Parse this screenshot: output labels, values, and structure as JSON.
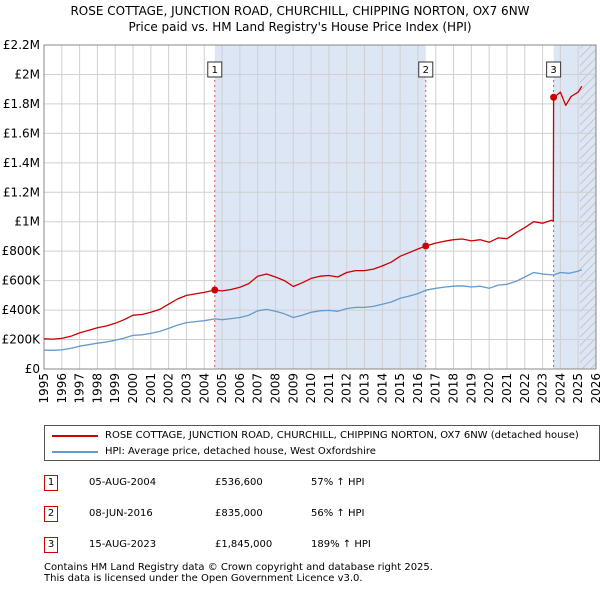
{
  "header": {
    "title_line1": "ROSE COTTAGE, JUNCTION ROAD, CHURCHILL, CHIPPING NORTON, OX7 6NW",
    "title_line2": "Price paid vs. HM Land Registry's House Price Index (HPI)"
  },
  "chart_data": {
    "type": "line",
    "x_range": [
      1995,
      2026
    ],
    "ylim": [
      0,
      2200000
    ],
    "y_ticks": [
      0,
      200000,
      400000,
      600000,
      800000,
      1000000,
      1200000,
      1400000,
      1600000,
      1800000,
      2000000,
      2200000
    ],
    "y_tick_labels": [
      "£0",
      "£200K",
      "£400K",
      "£600K",
      "£800K",
      "£1M",
      "£1.2M",
      "£1.4M",
      "£1.6M",
      "£1.8M",
      "£2M",
      "£2.2M"
    ],
    "x_ticks": [
      1995,
      1996,
      1997,
      1998,
      1999,
      2000,
      2001,
      2002,
      2003,
      2004,
      2005,
      2006,
      2007,
      2008,
      2009,
      2010,
      2011,
      2012,
      2013,
      2014,
      2015,
      2016,
      2017,
      2018,
      2019,
      2020,
      2021,
      2022,
      2023,
      2024,
      2025,
      2026
    ],
    "x_tick_labels": [
      "1995",
      "1996",
      "1997",
      "1998",
      "1999",
      "2000",
      "2001",
      "2002",
      "2003",
      "2004",
      "2005",
      "2006",
      "2007",
      "2008",
      "2009",
      "2010",
      "2011",
      "2012",
      "2013",
      "2014",
      "2015",
      "2016",
      "2017",
      "2018",
      "2019",
      "2020",
      "2021",
      "2022",
      "2023",
      "2024",
      "2025",
      "2026"
    ],
    "shaded_periods": [
      {
        "start": 2004.59,
        "end": 2016.44
      },
      {
        "start": 2023.62,
        "end": 2026
      }
    ],
    "hatched_period": {
      "start": 2025.1,
      "end": 2026
    },
    "grid": true,
    "series": [
      {
        "name": "ROSE COTTAGE, JUNCTION ROAD, CHURCHILL, CHIPPING NORTON, OX7 6NW (detached house)",
        "color": "#cc0000",
        "x": [
          1995.0,
          1995.5,
          1996.0,
          1996.5,
          1997.0,
          1997.5,
          1998.0,
          1998.5,
          1999.0,
          1999.5,
          2000.0,
          2000.5,
          2001.0,
          2001.5,
          2002.0,
          2002.5,
          2003.0,
          2003.5,
          2004.0,
          2004.59,
          2005.0,
          2005.5,
          2006.0,
          2006.5,
          2007.0,
          2007.5,
          2008.0,
          2008.5,
          2009.0,
          2009.5,
          2010.0,
          2010.5,
          2011.0,
          2011.5,
          2012.0,
          2012.5,
          2013.0,
          2013.5,
          2014.0,
          2014.5,
          2015.0,
          2015.5,
          2016.0,
          2016.44,
          2017.0,
          2017.5,
          2018.0,
          2018.5,
          2019.0,
          2019.5,
          2020.0,
          2020.5,
          2021.0,
          2021.5,
          2022.0,
          2022.5,
          2023.0,
          2023.5,
          2023.6,
          2023.62,
          2023.8,
          2024.0,
          2024.3,
          2024.6,
          2025.0,
          2025.2
        ],
        "values": [
          205000,
          203000,
          208000,
          222000,
          245000,
          262000,
          280000,
          292000,
          310000,
          335000,
          365000,
          370000,
          385000,
          405000,
          440000,
          475000,
          500000,
          510000,
          520000,
          536600,
          530000,
          540000,
          555000,
          580000,
          630000,
          645000,
          625000,
          600000,
          560000,
          585000,
          615000,
          630000,
          635000,
          625000,
          655000,
          668000,
          668000,
          678000,
          700000,
          725000,
          765000,
          790000,
          815000,
          835000,
          855000,
          868000,
          878000,
          883000,
          870000,
          878000,
          860000,
          890000,
          885000,
          925000,
          960000,
          1000000,
          990000,
          1010000,
          1005000,
          1845000,
          1860000,
          1880000,
          1790000,
          1850000,
          1880000,
          1920000
        ]
      },
      {
        "name": "HPI: Average price, detached house, West Oxfordshire",
        "color": "#6699cc",
        "x": [
          1995.0,
          1995.5,
          1996.0,
          1996.5,
          1997.0,
          1997.5,
          1998.0,
          1998.5,
          1999.0,
          1999.5,
          2000.0,
          2000.5,
          2001.0,
          2001.5,
          2002.0,
          2002.5,
          2003.0,
          2003.5,
          2004.0,
          2004.59,
          2005.0,
          2005.5,
          2006.0,
          2006.5,
          2007.0,
          2007.5,
          2008.0,
          2008.5,
          2009.0,
          2009.5,
          2010.0,
          2010.5,
          2011.0,
          2011.5,
          2012.0,
          2012.5,
          2013.0,
          2013.5,
          2014.0,
          2014.5,
          2015.0,
          2015.5,
          2016.0,
          2016.44,
          2017.0,
          2017.5,
          2018.0,
          2018.5,
          2019.0,
          2019.5,
          2020.0,
          2020.5,
          2021.0,
          2021.5,
          2022.0,
          2022.5,
          2023.0,
          2023.62,
          2024.0,
          2024.5,
          2025.0,
          2025.2
        ],
        "values": [
          128000,
          127000,
          130000,
          140000,
          155000,
          165000,
          175000,
          183000,
          195000,
          210000,
          228000,
          232000,
          242000,
          255000,
          276000,
          298000,
          315000,
          322000,
          328000,
          340000,
          335000,
          342000,
          350000,
          365000,
          395000,
          405000,
          392000,
          375000,
          350000,
          365000,
          385000,
          395000,
          398000,
          392000,
          410000,
          418000,
          418000,
          425000,
          440000,
          455000,
          480000,
          495000,
          512000,
          535000,
          548000,
          556000,
          562000,
          565000,
          557000,
          562000,
          548000,
          570000,
          575000,
          595000,
          625000,
          655000,
          645000,
          638000,
          655000,
          650000,
          665000,
          675000
        ]
      }
    ],
    "markers": [
      {
        "label": "1",
        "x": 2004.59,
        "value": 536600
      },
      {
        "label": "2",
        "x": 2016.44,
        "value": 835000
      },
      {
        "label": "3",
        "x": 2023.62,
        "value": 1845000
      }
    ]
  },
  "legend": {
    "property_label": "ROSE COTTAGE, JUNCTION ROAD, CHURCHILL, CHIPPING NORTON, OX7 6NW (detached house)",
    "hpi_label": "HPI: Average price, detached house, West Oxfordshire"
  },
  "transactions": [
    {
      "num": "1",
      "date": "05-AUG-2004",
      "price": "£536,600",
      "hpi": "57% ↑ HPI"
    },
    {
      "num": "2",
      "date": "08-JUN-2016",
      "price": "£835,000",
      "hpi": "56% ↑ HPI"
    },
    {
      "num": "3",
      "date": "15-AUG-2023",
      "price": "£1,845,000",
      "hpi": "189% ↑ HPI"
    }
  ],
  "footer": {
    "line1": "Contains HM Land Registry data © Crown copyright and database right 2025.",
    "line2": "This data is licensed under the Open Government Licence v3.0."
  }
}
